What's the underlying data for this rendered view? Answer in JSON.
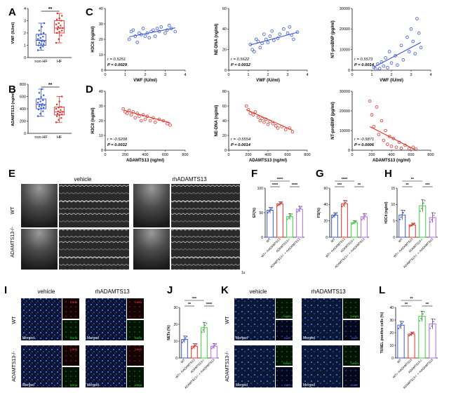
{
  "panels": {
    "A": "A",
    "B": "B",
    "C": "C",
    "D": "D",
    "E": "E",
    "F": "F",
    "G": "G",
    "H": "H",
    "I": "I",
    "J": "J",
    "K": "K",
    "L": "L"
  },
  "colors": {
    "blue": "#3a57d6",
    "red": "#e0342a",
    "green": "#3fcf3f",
    "purple": "#b06ae6",
    "black": "#111111"
  },
  "stat_labels": {
    "double_star": "**",
    "triple_star": "***",
    "quad_star": "****"
  },
  "echo": {
    "vehicle": "vehicle",
    "rh": "rhADAMTS13",
    "row_wt": "WT",
    "row_ko": "ADAMTS13-/-",
    "scale_label": "1s"
  },
  "histology": {
    "I": {
      "vehicle": "vehicle",
      "rh": "rhADAMTS13",
      "row_wt": "WT",
      "row_ko": "ADAMTS13-/-",
      "merged": "Merged",
      "ch1": "CitH3",
      "ch2": "H3Cit"
    },
    "K": {
      "vehicle": "vehicle",
      "rh": "rhADAMTS13",
      "row_wt": "WT",
      "row_ko": "ADAMTS13-/-",
      "merged": "Merged",
      "ch1": "TUNEL",
      "ch2": "DAPI"
    }
  },
  "chart_data": [
    {
      "id": "A",
      "type": "box",
      "categories": [
        "non-HF",
        "HF"
      ],
      "ylabel": "VWF (IU/ml)",
      "ylim": [
        0,
        4
      ],
      "yticks": [
        "0",
        "1",
        "2",
        "3",
        "4"
      ],
      "boxes": [
        {
          "min": 0.6,
          "q1": 1.0,
          "median": 1.4,
          "q3": 1.9,
          "max": 2.8
        },
        {
          "min": 1.2,
          "q1": 2.0,
          "median": 2.4,
          "q3": 3.0,
          "max": 3.6
        }
      ],
      "points": [
        [
          0.6,
          0.8,
          0.9,
          1.0,
          1.1,
          1.1,
          1.2,
          1.3,
          1.3,
          1.4,
          1.4,
          1.5,
          1.6,
          1.7,
          1.8,
          1.9,
          2.0,
          2.2,
          2.5,
          2.8
        ],
        [
          1.2,
          1.5,
          1.8,
          2.0,
          2.1,
          2.2,
          2.3,
          2.4,
          2.4,
          2.5,
          2.6,
          2.7,
          2.8,
          3.0,
          3.1,
          3.2,
          3.4,
          3.6
        ]
      ],
      "significance": "**"
    },
    {
      "id": "B",
      "type": "box",
      "categories": [
        "non-HF",
        "HF"
      ],
      "ylabel": "ADAMTS13 (ng/ml)",
      "ylim": [
        0,
        800
      ],
      "yticks": [
        "0",
        "200",
        "400",
        "600",
        "800"
      ],
      "boxes": [
        {
          "min": 280,
          "q1": 400,
          "median": 470,
          "q3": 560,
          "max": 720
        },
        {
          "min": 180,
          "q1": 300,
          "median": 350,
          "q3": 430,
          "max": 600
        }
      ],
      "points": [
        [
          280,
          320,
          360,
          390,
          410,
          420,
          440,
          450,
          460,
          470,
          480,
          500,
          520,
          540,
          560,
          590,
          620,
          660,
          720
        ],
        [
          180,
          220,
          250,
          280,
          300,
          310,
          320,
          340,
          350,
          360,
          380,
          400,
          420,
          430,
          470,
          520,
          600
        ]
      ],
      "significance": "**"
    },
    {
      "id": "C1",
      "type": "scatter",
      "color": "blue",
      "xlabel": "VWF (IU/ml)",
      "ylabel": "H3Cit (ng/ml)",
      "xlim": [
        0,
        4
      ],
      "ylim": [
        0,
        40
      ],
      "xticks": [
        "0",
        "1",
        "2",
        "3",
        "4"
      ],
      "yticks": [
        "0",
        "10",
        "20",
        "30",
        "40"
      ],
      "points": [
        [
          1.2,
          20
        ],
        [
          1.3,
          25
        ],
        [
          1.4,
          26
        ],
        [
          1.5,
          22
        ],
        [
          1.6,
          18
        ],
        [
          1.7,
          24
        ],
        [
          1.8,
          23
        ],
        [
          1.9,
          27
        ],
        [
          2.0,
          22
        ],
        [
          2.1,
          24
        ],
        [
          2.2,
          21
        ],
        [
          2.3,
          25
        ],
        [
          2.4,
          26
        ],
        [
          2.5,
          22
        ],
        [
          2.6,
          27
        ],
        [
          2.7,
          25
        ],
        [
          2.8,
          28
        ],
        [
          3.0,
          24
        ],
        [
          3.1,
          26
        ],
        [
          3.2,
          29
        ],
        [
          3.3,
          27
        ],
        [
          3.5,
          25
        ]
      ],
      "fit": [
        [
          1.2,
          21.6
        ],
        [
          3.5,
          27.4
        ]
      ],
      "stats": [
        "r = 0.5251",
        "P = 0.0029"
      ]
    },
    {
      "id": "C2",
      "type": "scatter",
      "color": "blue",
      "xlabel": "VWF (IU/ml)",
      "ylabel": "NE-DNA (ng/ml)",
      "xlim": [
        0,
        4
      ],
      "ylim": [
        0,
        60
      ],
      "xticks": [
        "0",
        "1",
        "2",
        "3",
        "4"
      ],
      "yticks": [
        "0",
        "20",
        "40",
        "60"
      ],
      "points": [
        [
          1.1,
          25
        ],
        [
          1.2,
          20
        ],
        [
          1.3,
          18
        ],
        [
          1.4,
          30
        ],
        [
          1.5,
          28
        ],
        [
          1.6,
          22
        ],
        [
          1.7,
          26
        ],
        [
          1.8,
          35
        ],
        [
          1.9,
          30
        ],
        [
          2.0,
          27
        ],
        [
          2.1,
          33
        ],
        [
          2.2,
          38
        ],
        [
          2.3,
          29
        ],
        [
          2.5,
          31
        ],
        [
          2.6,
          35
        ],
        [
          2.8,
          40
        ],
        [
          3.0,
          36
        ],
        [
          3.1,
          42
        ],
        [
          3.2,
          34
        ],
        [
          3.3,
          30
        ],
        [
          3.5,
          37
        ]
      ],
      "fit": [
        [
          1.1,
          24.5
        ],
        [
          3.5,
          36.8
        ]
      ],
      "stats": [
        "r = 0.5622",
        "P = 0.0012"
      ]
    },
    {
      "id": "C3",
      "type": "scatter",
      "color": "blue",
      "xlabel": "VWF (IU/ml)",
      "ylabel": "NT-proBNP (pg/ml)",
      "xlim": [
        0,
        4
      ],
      "ylim": [
        0,
        30000
      ],
      "xticks": [
        "0",
        "1",
        "2",
        "3",
        "4"
      ],
      "yticks": [
        "0",
        "10000",
        "20000",
        "30000"
      ],
      "points": [
        [
          1.1,
          1500
        ],
        [
          1.2,
          500
        ],
        [
          1.3,
          3000
        ],
        [
          1.4,
          800
        ],
        [
          1.5,
          4000
        ],
        [
          1.6,
          2000
        ],
        [
          1.7,
          6000
        ],
        [
          1.8,
          1200
        ],
        [
          1.9,
          9000
        ],
        [
          2.0,
          3500
        ],
        [
          2.2,
          7000
        ],
        [
          2.3,
          2500
        ],
        [
          2.5,
          12000
        ],
        [
          2.6,
          5000
        ],
        [
          2.8,
          16000
        ],
        [
          2.9,
          9000
        ],
        [
          3.0,
          20000
        ],
        [
          3.1,
          14000
        ],
        [
          3.2,
          8000
        ],
        [
          3.3,
          25000
        ],
        [
          3.4,
          18000
        ],
        [
          3.5,
          11000
        ]
      ],
      "fit": [
        [
          1.1,
          1500
        ],
        [
          3.5,
          13500
        ]
      ],
      "stats": [
        "r = 0.5573",
        "P = 0.0014"
      ]
    },
    {
      "id": "D1",
      "type": "scatter",
      "color": "red",
      "xlabel": "ADAMTS13 (ng/ml)",
      "ylabel": "H3Cit (ng/ml)",
      "xlim": [
        0,
        800
      ],
      "ylim": [
        0,
        40
      ],
      "xticks": [
        "0",
        "200",
        "400",
        "600",
        "800"
      ],
      "yticks": [
        "0",
        "10",
        "20",
        "30",
        "40"
      ],
      "points": [
        [
          180,
          28
        ],
        [
          200,
          26
        ],
        [
          220,
          25
        ],
        [
          240,
          27
        ],
        [
          260,
          24
        ],
        [
          280,
          26
        ],
        [
          300,
          22
        ],
        [
          320,
          25
        ],
        [
          340,
          23
        ],
        [
          360,
          20
        ],
        [
          380,
          24
        ],
        [
          400,
          21
        ],
        [
          420,
          23
        ],
        [
          450,
          20
        ],
        [
          480,
          22
        ],
        [
          500,
          19
        ],
        [
          540,
          21
        ],
        [
          580,
          20
        ],
        [
          620,
          18
        ],
        [
          650,
          17
        ]
      ],
      "fit": [
        [
          180,
          27.2
        ],
        [
          650,
          18.6
        ]
      ],
      "stats": [
        "r = -0.5208",
        "P = 0.0032"
      ]
    },
    {
      "id": "D2",
      "type": "scatter",
      "color": "red",
      "xlabel": "ADAMTS13 (ng/ml)",
      "ylabel": "NE-DNA (ng/ml)",
      "xlim": [
        0,
        800
      ],
      "ylim": [
        0,
        80
      ],
      "xticks": [
        "0",
        "200",
        "400",
        "600",
        "800"
      ],
      "yticks": [
        "0",
        "20",
        "40",
        "60",
        "80"
      ],
      "points": [
        [
          180,
          60
        ],
        [
          200,
          55
        ],
        [
          220,
          50
        ],
        [
          250,
          48
        ],
        [
          270,
          52
        ],
        [
          300,
          45
        ],
        [
          320,
          40
        ],
        [
          340,
          43
        ],
        [
          360,
          38
        ],
        [
          380,
          42
        ],
        [
          400,
          35
        ],
        [
          420,
          39
        ],
        [
          450,
          36
        ],
        [
          480,
          33
        ],
        [
          500,
          30
        ],
        [
          540,
          32
        ],
        [
          580,
          28
        ],
        [
          620,
          30
        ],
        [
          650,
          25
        ]
      ],
      "fit": [
        [
          180,
          55
        ],
        [
          650,
          27
        ]
      ],
      "stats": [
        "r = -0.5554",
        "P = 0.0014"
      ]
    },
    {
      "id": "D3",
      "type": "scatter",
      "color": "red",
      "xlabel": "ADAMTS13 (ng/ml)",
      "ylabel": "NT-proBNP (pg/ml)",
      "xlim": [
        0,
        800
      ],
      "ylim": [
        0,
        30000
      ],
      "xticks": [
        "0",
        "200",
        "400",
        "600",
        "800"
      ],
      "yticks": [
        "0",
        "10000",
        "20000",
        "30000"
      ],
      "points": [
        [
          180,
          25000
        ],
        [
          200,
          18000
        ],
        [
          220,
          12000
        ],
        [
          250,
          22000
        ],
        [
          270,
          8000
        ],
        [
          300,
          15000
        ],
        [
          320,
          5000
        ],
        [
          340,
          10000
        ],
        [
          360,
          3000
        ],
        [
          380,
          7000
        ],
        [
          400,
          2000
        ],
        [
          420,
          6000
        ],
        [
          450,
          1500
        ],
        [
          480,
          4000
        ],
        [
          500,
          1000
        ],
        [
          540,
          2500
        ],
        [
          580,
          800
        ],
        [
          620,
          1500
        ],
        [
          650,
          500
        ]
      ],
      "fit": [
        [
          180,
          12000
        ],
        [
          650,
          0
        ]
      ],
      "stats": [
        "r = -0.5871",
        "P = 0.0006"
      ]
    },
    {
      "id": "F",
      "type": "bar",
      "ylabel": "EF(%)",
      "ylim": [
        0,
        100
      ],
      "yticks": [
        "0",
        "50",
        "100"
      ],
      "categories": [
        "WT",
        "WT+ rhADAMTS13",
        "ADAMTS13-/-",
        "ADAMTS13-/- + rhADAMTS13"
      ],
      "values": [
        55,
        68,
        42,
        57
      ],
      "errors": [
        6,
        4,
        6,
        6
      ],
      "significance": [
        {
          "from": 0,
          "to": 1,
          "label": "****",
          "level": 0
        },
        {
          "from": 2,
          "to": 3,
          "label": "****",
          "level": 0
        },
        {
          "from": 0,
          "to": 2,
          "label": "****",
          "level": 1
        }
      ]
    },
    {
      "id": "G",
      "type": "bar",
      "ylabel": "FS(%)",
      "ylim": [
        0,
        60
      ],
      "yticks": [
        "0",
        "20",
        "40",
        "60"
      ],
      "categories": [
        "WT",
        "WT+ rhADAMTS13",
        "ADAMTS13-/-",
        "ADAMTS13-/- + rhADAMTS13"
      ],
      "values": [
        27,
        41,
        18,
        25
      ],
      "errors": [
        3,
        4,
        2,
        4
      ],
      "significance": [
        {
          "from": 0,
          "to": 1,
          "label": "***",
          "level": 0
        },
        {
          "from": 2,
          "to": 3,
          "label": "**",
          "level": 0
        },
        {
          "from": 0,
          "to": 2,
          "label": "****",
          "level": 1
        }
      ]
    },
    {
      "id": "H",
      "type": "bar",
      "ylabel": "H3Cit (ng/ml)",
      "ylim": [
        0,
        15
      ],
      "yticks": [
        "0",
        "5",
        "10",
        "15"
      ],
      "categories": [
        "WT",
        "WT+ rhADAMTS13",
        "ADAMTS13-/-",
        "ADAMTS13-/- + rhADAMTS13"
      ],
      "values": [
        6.8,
        3.8,
        9.6,
        6.0
      ],
      "errors": [
        1.5,
        0.5,
        1.8,
        1.5
      ],
      "significance": [
        {
          "from": 0,
          "to": 1,
          "label": "**",
          "level": 0
        },
        {
          "from": 2,
          "to": 3,
          "label": "***",
          "level": 0
        },
        {
          "from": 0,
          "to": 2,
          "label": "**",
          "level": 1
        }
      ]
    },
    {
      "id": "J",
      "type": "bar",
      "ylabel": "NETs (%)",
      "ylim": [
        0,
        30
      ],
      "yticks": [
        "0",
        "10",
        "20",
        "30"
      ],
      "categories": [
        "WT",
        "WT+ rhADAMTS13",
        "ADAMTS13-/-",
        "ADAMTS13-/- + rhADAMTS13"
      ],
      "values": [
        11,
        7,
        18,
        7
      ],
      "errors": [
        2,
        1.5,
        3,
        1.5
      ],
      "significance": [
        {
          "from": 0,
          "to": 1,
          "label": "**",
          "level": 0
        },
        {
          "from": 2,
          "to": 3,
          "label": "****",
          "level": 0
        },
        {
          "from": 0,
          "to": 2,
          "label": "***",
          "level": 1
        }
      ]
    },
    {
      "id": "L",
      "type": "bar",
      "ylabel": "TUNEL positive cells (%)",
      "ylim": [
        0,
        40
      ],
      "yticks": [
        "0",
        "10",
        "20",
        "30",
        "40"
      ],
      "categories": [
        "WT",
        "WT+ rhADAMTS13",
        "ADAMTS13-/-",
        "ADAMTS13-/- + rhADAMTS13"
      ],
      "values": [
        26,
        19,
        33,
        27
      ],
      "errors": [
        3,
        1.5,
        4,
        4
      ],
      "significance": [
        {
          "from": 0,
          "to": 1,
          "label": "**",
          "level": 0
        },
        {
          "from": 2,
          "to": 3,
          "label": "**",
          "level": 0
        },
        {
          "from": 0,
          "to": 2,
          "label": "**",
          "level": 1
        }
      ]
    }
  ]
}
